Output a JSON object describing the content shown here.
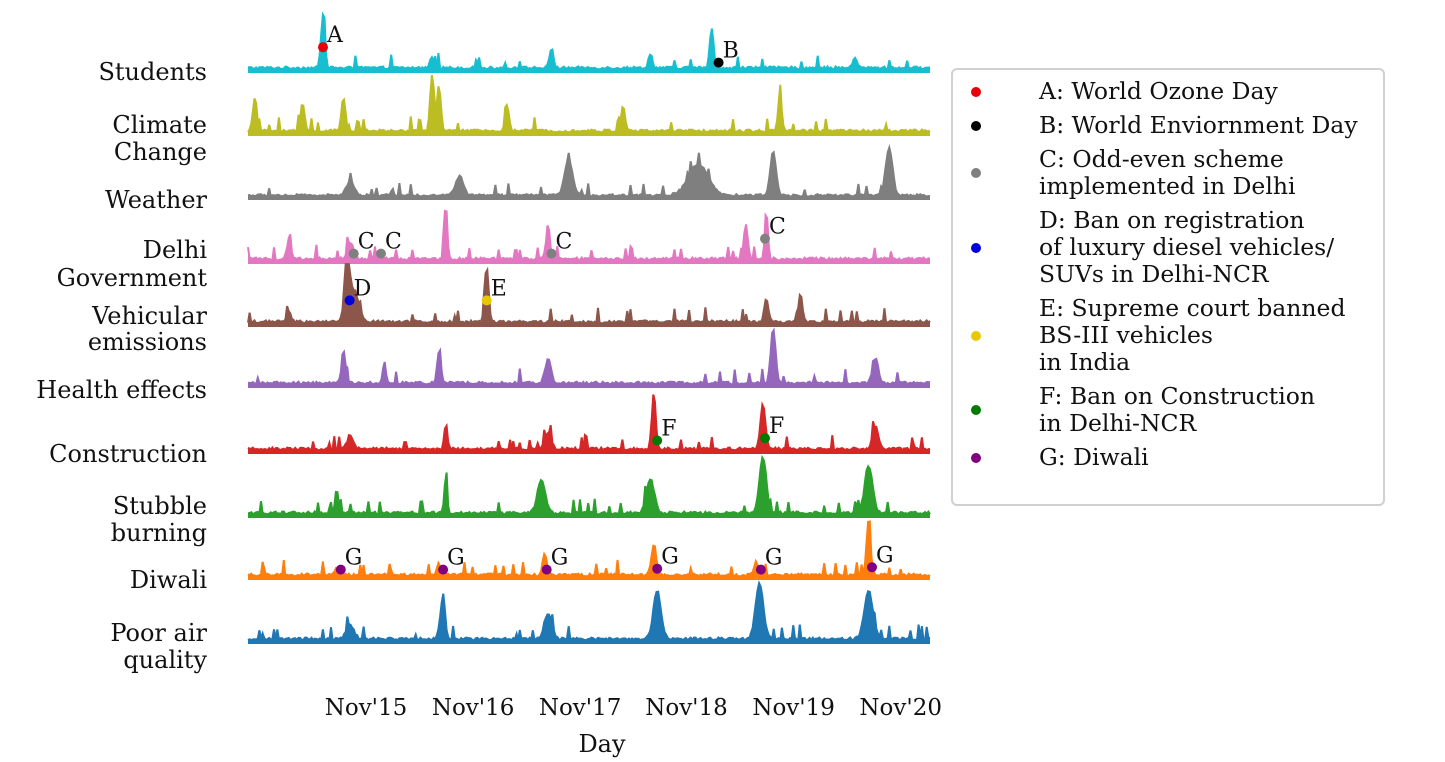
{
  "chart_data": {
    "type": "area",
    "title": "",
    "xlabel": "Day",
    "ylabel": "",
    "x_ticks": [
      "Nov'15",
      "Nov'16",
      "Nov'17",
      "Nov'18",
      "Nov'19",
      "Nov'20"
    ],
    "x_range": [
      "Jul'14",
      "Jun'21"
    ],
    "grid": false,
    "legend_position": "right",
    "series": [
      {
        "name": "Students",
        "color": "#17becf",
        "peaks": [
          {
            "x": 0.11,
            "h": 0.95,
            "w": 0.004
          },
          {
            "x": 0.68,
            "h": 0.7,
            "w": 0.004
          },
          {
            "x": 0.445,
            "h": 0.35,
            "w": 0.004
          },
          {
            "x": 0.59,
            "h": 0.25,
            "w": 0.004
          },
          {
            "x": 0.27,
            "h": 0.2,
            "w": 0.004
          },
          {
            "x": 0.89,
            "h": 0.2,
            "w": 0.004
          }
        ]
      },
      {
        "name": "Climate\nChange",
        "color": "#bcbd22",
        "peaks": [
          {
            "x": 0.27,
            "h": 1.0,
            "w": 0.004
          },
          {
            "x": 0.28,
            "h": 0.8,
            "w": 0.004
          },
          {
            "x": 0.01,
            "h": 0.6,
            "w": 0.004
          },
          {
            "x": 0.08,
            "h": 0.5,
            "w": 0.004
          },
          {
            "x": 0.14,
            "h": 0.6,
            "w": 0.004
          },
          {
            "x": 0.78,
            "h": 0.6,
            "w": 0.004
          },
          {
            "x": 0.55,
            "h": 0.45,
            "w": 0.004
          },
          {
            "x": 0.38,
            "h": 0.45,
            "w": 0.004
          }
        ]
      },
      {
        "name": "Weather",
        "color": "#7f7f7f",
        "peaks": [
          {
            "x": 0.47,
            "h": 0.75,
            "w": 0.008
          },
          {
            "x": 0.77,
            "h": 0.9,
            "w": 0.006
          },
          {
            "x": 0.94,
            "h": 1.0,
            "w": 0.007
          },
          {
            "x": 0.66,
            "h": 0.65,
            "w": 0.02
          },
          {
            "x": 0.15,
            "h": 0.3,
            "w": 0.008
          },
          {
            "x": 0.31,
            "h": 0.4,
            "w": 0.008
          }
        ]
      },
      {
        "name": "Delhi\nGovernment",
        "color": "#e377c2",
        "peaks": [
          {
            "x": 0.29,
            "h": 1.0,
            "w": 0.003
          },
          {
            "x": 0.76,
            "h": 0.9,
            "w": 0.003
          },
          {
            "x": 0.73,
            "h": 0.6,
            "w": 0.004
          },
          {
            "x": 0.44,
            "h": 0.6,
            "w": 0.004
          },
          {
            "x": 0.06,
            "h": 0.35,
            "w": 0.004
          },
          {
            "x": 0.15,
            "h": 0.3,
            "w": 0.006
          }
        ]
      },
      {
        "name": "Vehicular\nemissions",
        "color": "#8c564b",
        "peaks": [
          {
            "x": 0.145,
            "h": 1.0,
            "w": 0.005
          },
          {
            "x": 0.155,
            "h": 0.55,
            "w": 0.01
          },
          {
            "x": 0.35,
            "h": 0.95,
            "w": 0.004
          },
          {
            "x": 0.81,
            "h": 0.5,
            "w": 0.004
          },
          {
            "x": 0.76,
            "h": 0.4,
            "w": 0.004
          },
          {
            "x": 0.06,
            "h": 0.2,
            "w": 0.004
          }
        ]
      },
      {
        "name": "Health effects",
        "color": "#9467bd",
        "peaks": [
          {
            "x": 0.77,
            "h": 1.0,
            "w": 0.005
          },
          {
            "x": 0.14,
            "h": 0.6,
            "w": 0.004
          },
          {
            "x": 0.28,
            "h": 0.55,
            "w": 0.004
          },
          {
            "x": 0.44,
            "h": 0.45,
            "w": 0.006
          },
          {
            "x": 0.92,
            "h": 0.45,
            "w": 0.006
          },
          {
            "x": 0.2,
            "h": 0.4,
            "w": 0.003
          }
        ]
      },
      {
        "name": "Construction",
        "color": "#d62728",
        "peaks": [
          {
            "x": 0.595,
            "h": 1.0,
            "w": 0.004
          },
          {
            "x": 0.755,
            "h": 0.8,
            "w": 0.005
          },
          {
            "x": 0.29,
            "h": 0.45,
            "w": 0.003
          },
          {
            "x": 0.44,
            "h": 0.3,
            "w": 0.006
          },
          {
            "x": 0.92,
            "h": 0.4,
            "w": 0.006
          },
          {
            "x": 0.15,
            "h": 0.25,
            "w": 0.006
          }
        ]
      },
      {
        "name": "Stubble\nburning",
        "color": "#2ca02c",
        "peaks": [
          {
            "x": 0.755,
            "h": 1.0,
            "w": 0.007
          },
          {
            "x": 0.91,
            "h": 0.85,
            "w": 0.008
          },
          {
            "x": 0.29,
            "h": 0.6,
            "w": 0.003
          },
          {
            "x": 0.13,
            "h": 0.45,
            "w": 0.003
          },
          {
            "x": 0.43,
            "h": 0.6,
            "w": 0.008
          },
          {
            "x": 0.59,
            "h": 0.6,
            "w": 0.008
          }
        ]
      },
      {
        "name": "Diwali",
        "color": "#ff7f0e",
        "peaks": [
          {
            "x": 0.91,
            "h": 1.0,
            "w": 0.004
          },
          {
            "x": 0.595,
            "h": 0.55,
            "w": 0.005
          },
          {
            "x": 0.435,
            "h": 0.4,
            "w": 0.004
          },
          {
            "x": 0.745,
            "h": 0.25,
            "w": 0.004
          },
          {
            "x": 0.28,
            "h": 0.2,
            "w": 0.004
          },
          {
            "x": 0.13,
            "h": 0.12,
            "w": 0.004
          }
        ]
      },
      {
        "name": "Poor air\nquality",
        "color": "#1f77b4",
        "peaks": [
          {
            "x": 0.75,
            "h": 1.0,
            "w": 0.008
          },
          {
            "x": 0.91,
            "h": 0.85,
            "w": 0.009
          },
          {
            "x": 0.6,
            "h": 0.85,
            "w": 0.008
          },
          {
            "x": 0.285,
            "h": 0.65,
            "w": 0.005
          },
          {
            "x": 0.44,
            "h": 0.45,
            "w": 0.008
          },
          {
            "x": 0.15,
            "h": 0.25,
            "w": 0.008
          }
        ]
      }
    ],
    "annotations": [
      {
        "label": "A",
        "series": "Students",
        "x": 0.11,
        "color": "#e8000b"
      },
      {
        "label": "B",
        "series": "Students",
        "x": 0.69,
        "color": "#000000"
      },
      {
        "label": "C",
        "series": "Delhi\nGovernment",
        "x": 0.155,
        "color": "#808080"
      },
      {
        "label": "C",
        "series": "Delhi\nGovernment",
        "x": 0.195,
        "color": "#808080"
      },
      {
        "label": "C",
        "series": "Delhi\nGovernment",
        "x": 0.445,
        "color": "#808080"
      },
      {
        "label": "C",
        "series": "Delhi\nGovernment",
        "x": 0.758,
        "color": "#808080"
      },
      {
        "label": "D",
        "series": "Vehicular\nemissions",
        "x": 0.149,
        "color": "#0000dd"
      },
      {
        "label": "E",
        "series": "Vehicular\nemissions",
        "x": 0.35,
        "color": "#e8c800"
      },
      {
        "label": "F",
        "series": "Construction",
        "x": 0.6,
        "color": "#007a00"
      },
      {
        "label": "F",
        "series": "Construction",
        "x": 0.758,
        "color": "#007a00"
      },
      {
        "label": "G",
        "series": "Diwali",
        "x": 0.136,
        "color": "#800080"
      },
      {
        "label": "G",
        "series": "Diwali",
        "x": 0.286,
        "color": "#800080"
      },
      {
        "label": "G",
        "series": "Diwali",
        "x": 0.438,
        "color": "#800080"
      },
      {
        "label": "G",
        "series": "Diwali",
        "x": 0.6,
        "color": "#800080"
      },
      {
        "label": "G",
        "series": "Diwali",
        "x": 0.752,
        "color": "#800080"
      },
      {
        "label": "G",
        "series": "Diwali",
        "x": 0.915,
        "color": "#800080"
      }
    ],
    "legend": [
      {
        "text": "A: World Ozone Day",
        "color": "#e8000b"
      },
      {
        "text": "B: World Enviornment Day",
        "color": "#000000"
      },
      {
        "text": "C: Odd-even scheme\nimplemented in Delhi",
        "color": "#808080"
      },
      {
        "text": "D: Ban on registration\nof luxury diesel vehicles/\nSUVs in Delhi-NCR",
        "color": "#0000dd"
      },
      {
        "text": "E: Supreme court banned\nBS-III vehicles\nin India",
        "color": "#e8c800"
      },
      {
        "text": "F: Ban on Construction\nin Delhi-NCR",
        "color": "#007a00"
      },
      {
        "text": "G: Diwali",
        "color": "#800080"
      }
    ]
  }
}
